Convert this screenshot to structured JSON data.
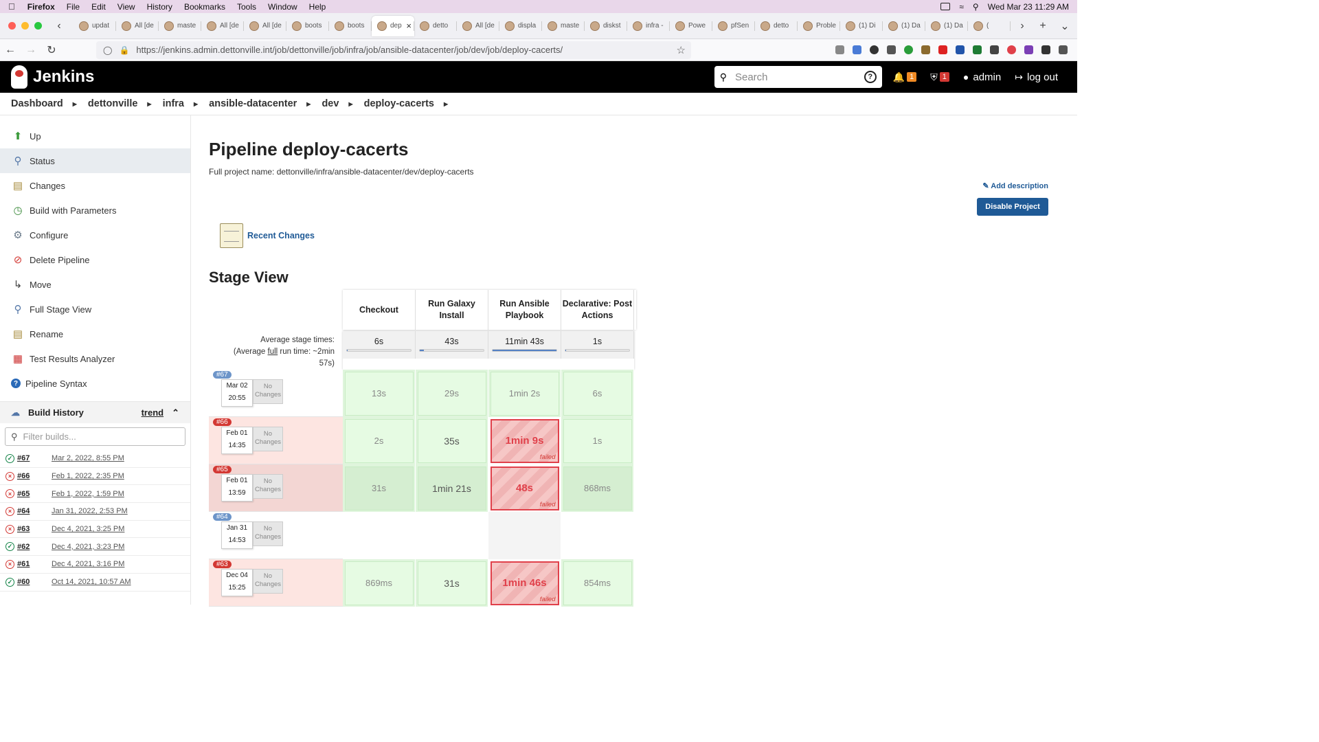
{
  "menubar": {
    "app": "Firefox",
    "items": [
      "File",
      "Edit",
      "View",
      "History",
      "Bookmarks",
      "Tools",
      "Window",
      "Help"
    ],
    "clock": "Wed Mar 23  11:29 AM"
  },
  "browser": {
    "tabs": [
      "updat",
      "All [de",
      "maste",
      "All [de",
      "All [de",
      "boots",
      "boots",
      "dep",
      "detto",
      "All [de",
      "displa",
      "maste",
      "diskst",
      "infra -",
      "Powe",
      "pfSen",
      "detto",
      "Proble",
      "(1) Di",
      "(1) Da",
      "(1) Da",
      "("
    ],
    "url": "https://jenkins.admin.dettonville.int/job/dettonville/job/infra/job/ansible-datacenter/job/dev/job/deploy-cacerts/"
  },
  "header": {
    "brand": "Jenkins",
    "search_placeholder": "Search",
    "notif_count": "1",
    "security_count": "1",
    "user": "admin",
    "logout": "log out"
  },
  "breadcrumbs": [
    "Dashboard",
    "dettonville",
    "infra",
    "ansible-datacenter",
    "dev",
    "deploy-cacerts"
  ],
  "sidebar": {
    "items": [
      {
        "label": "Up",
        "icon": "up-arrow-icon"
      },
      {
        "label": "Status",
        "icon": "search-icon"
      },
      {
        "label": "Changes",
        "icon": "notepad-icon"
      },
      {
        "label": "Build with Parameters",
        "icon": "clock-icon"
      },
      {
        "label": "Configure",
        "icon": "gear-icon"
      },
      {
        "label": "Delete Pipeline",
        "icon": "no-icon"
      },
      {
        "label": "Move",
        "icon": "move-icon"
      },
      {
        "label": "Full Stage View",
        "icon": "search-icon"
      },
      {
        "label": "Rename",
        "icon": "notepad-icon"
      },
      {
        "label": "Test Results Analyzer",
        "icon": "chart-icon"
      },
      {
        "label": "Pipeline Syntax",
        "icon": "help-icon"
      }
    ],
    "build_history": "Build History",
    "trend": "trend",
    "filter_placeholder": "Filter builds...",
    "builds": [
      {
        "num": "#67",
        "date": "Mar 2, 2022, 8:55 PM",
        "status": "ok"
      },
      {
        "num": "#66",
        "date": "Feb 1, 2022, 2:35 PM",
        "status": "fail"
      },
      {
        "num": "#65",
        "date": "Feb 1, 2022, 1:59 PM",
        "status": "fail"
      },
      {
        "num": "#64",
        "date": "Jan 31, 2022, 2:53 PM",
        "status": "fail"
      },
      {
        "num": "#63",
        "date": "Dec 4, 2021, 3:25 PM",
        "status": "fail"
      },
      {
        "num": "#62",
        "date": "Dec 4, 2021, 3:23 PM",
        "status": "ok"
      },
      {
        "num": "#61",
        "date": "Dec 4, 2021, 3:16 PM",
        "status": "fail"
      },
      {
        "num": "#60",
        "date": "Oct 14, 2021, 10:57 AM",
        "status": "ok"
      }
    ]
  },
  "main": {
    "title": "Pipeline deploy-cacerts",
    "full_name": "Full project name: dettonville/infra/ansible-datacenter/dev/deploy-cacerts",
    "add_description": "Add description",
    "disable": "Disable Project",
    "recent_changes": "Recent Changes",
    "stage_view": "Stage View",
    "avg_label_1": "Average stage times:",
    "avg_label_2a": "(Average ",
    "avg_label_full": "full",
    "avg_label_2b": " run time: ~2min",
    "avg_label_3": "57s)",
    "no_changes": "No Changes",
    "failed": "failed"
  },
  "stages": {
    "headers": [
      "Checkout",
      "Run Galaxy Install",
      "Run Ansible Playbook",
      "Declarative: Post Actions"
    ],
    "averages": [
      "6s",
      "43s",
      "11min 43s",
      "1s"
    ],
    "avg_fraction": [
      0.01,
      0.06,
      1.0,
      0.01
    ],
    "runs": [
      {
        "num": "#67",
        "date": "Mar 02",
        "time": "20:55",
        "cells": [
          "13s",
          "29s",
          "1min 2s",
          "6s"
        ],
        "states": [
          "ok",
          "ok",
          "ok",
          "ok"
        ]
      },
      {
        "num": "#66",
        "date": "Feb 01",
        "time": "14:35",
        "cells": [
          "2s",
          "35s",
          "1min 9s",
          "1s"
        ],
        "states": [
          "ok",
          "okb",
          "fail",
          "ok"
        ]
      },
      {
        "num": "#65",
        "date": "Feb 01",
        "time": "13:59",
        "cells": [
          "31s",
          "1min 21s",
          "48s",
          "868ms"
        ],
        "states": [
          "okd",
          "okdb",
          "fail",
          "okd"
        ]
      },
      {
        "num": "#64",
        "date": "Jan 31",
        "time": "14:53",
        "cells": [
          "",
          "",
          "",
          ""
        ],
        "states": [
          "empty",
          "empty",
          "emptyd",
          "empty"
        ]
      },
      {
        "num": "#63",
        "date": "Dec 04",
        "time": "15:25",
        "cells": [
          "869ms",
          "31s",
          "1min 46s",
          "854ms"
        ],
        "states": [
          "ok",
          "okb",
          "fail",
          "ok"
        ]
      }
    ]
  }
}
